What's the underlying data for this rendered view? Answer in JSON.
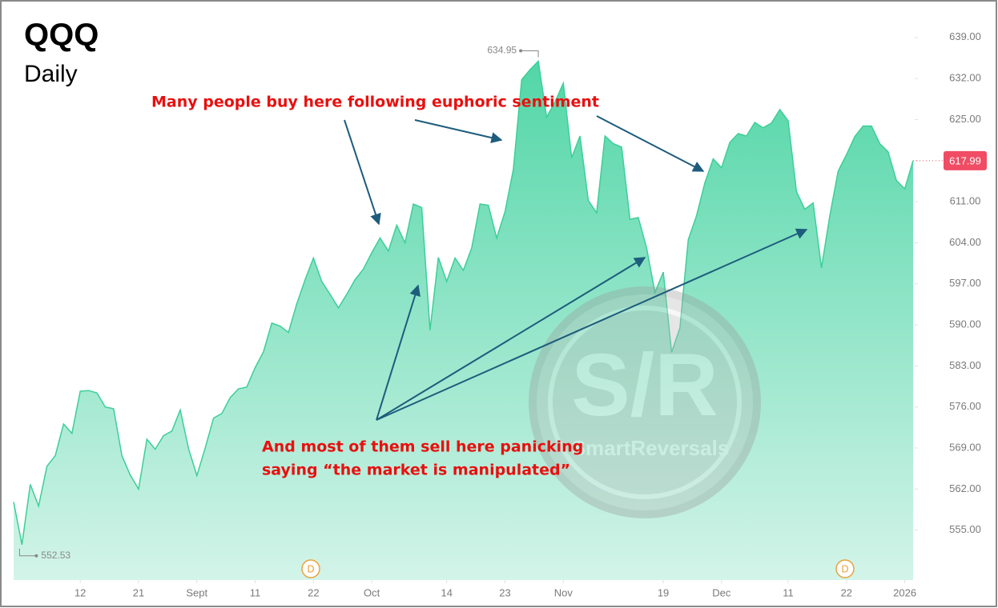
{
  "chart_data": {
    "type": "area",
    "title": "QQQ",
    "subtitle": "Daily",
    "color": "#3ccf98",
    "values": [
      559.8,
      552.53,
      562.8,
      559.1,
      565.9,
      567.7,
      573.1,
      571.5,
      578.7,
      578.8,
      578.4,
      576.0,
      575.7,
      567.7,
      564.4,
      562.0,
      570.5,
      568.8,
      571.1,
      571.9,
      575.5,
      568.9,
      564.3,
      569.0,
      574.1,
      574.9,
      577.6,
      579.1,
      579.4,
      582.7,
      585.4,
      590.3,
      589.8,
      588.7,
      593.6,
      597.7,
      601.4,
      597.4,
      595.2,
      592.9,
      595.2,
      597.7,
      599.5,
      602.3,
      604.8,
      602.6,
      607.0,
      604.0,
      610.6,
      610.0,
      589.1,
      601.5,
      597.4,
      601.4,
      599.3,
      603.1,
      610.6,
      610.4,
      604.8,
      609.3,
      616.5,
      631.8,
      633.5,
      634.95,
      625.4,
      628.0,
      631.2,
      618.5,
      622.2,
      611.2,
      609.1,
      622.2,
      620.9,
      620.3,
      608.0,
      608.3,
      603.1,
      595.5,
      599.0,
      585.3,
      589.5,
      604.5,
      608.6,
      614.2,
      618.3,
      616.8,
      621.1,
      622.6,
      622.2,
      624.5,
      623.6,
      624.4,
      626.7,
      624.8,
      612.7,
      609.7,
      610.8,
      599.7,
      608.6,
      616.2,
      619.0,
      622.1,
      623.9,
      623.9,
      620.9,
      619.5,
      614.6,
      613.2,
      617.99
    ],
    "xlim": [
      0,
      108
    ],
    "xticks": [
      {
        "value": 8,
        "label": "12"
      },
      {
        "value": 15,
        "label": "21"
      },
      {
        "value": 22,
        "label": "Sept"
      },
      {
        "value": 29,
        "label": "11"
      },
      {
        "value": 36,
        "label": "22"
      },
      {
        "value": 43,
        "label": "Oct"
      },
      {
        "value": 52,
        "label": "14"
      },
      {
        "value": 59,
        "label": "23"
      },
      {
        "value": 66,
        "label": "Nov"
      },
      {
        "value": 78,
        "label": "19"
      },
      {
        "value": 85,
        "label": "Dec"
      },
      {
        "value": 93,
        "label": "11"
      },
      {
        "value": 100,
        "label": "22"
      },
      {
        "value": 107,
        "label": "2026"
      }
    ],
    "ylim": [
      546.5,
      644.7
    ],
    "yticks": [
      {
        "value": 555,
        "label": "555.00"
      },
      {
        "value": 562,
        "label": "562.00"
      },
      {
        "value": 569,
        "label": "569.00"
      },
      {
        "value": 576,
        "label": "576.00"
      },
      {
        "value": 583,
        "label": "583.00"
      },
      {
        "value": 590,
        "label": "590.00"
      },
      {
        "value": 597,
        "label": "597.00"
      },
      {
        "value": 604,
        "label": "604.00"
      },
      {
        "value": 611,
        "label": "611.00"
      },
      {
        "value": 618,
        "label": "618.00"
      },
      {
        "value": 625,
        "label": "625.00"
      },
      {
        "value": 632,
        "label": "632.00"
      },
      {
        "value": 639,
        "label": "639.00"
      }
    ],
    "grid": false,
    "annotations": {
      "high_label": "634.95",
      "low_label": "552.53",
      "last_price_label": "617.99",
      "dividend_markers": [
        "D",
        "D"
      ],
      "buy_note": "Many people buy here following euphoric sentiment",
      "sell_note": [
        "And most of them sell here panicking",
        "saying “the market is manipulated”"
      ],
      "watermark": [
        "S/R",
        "SmartReversals"
      ]
    }
  }
}
